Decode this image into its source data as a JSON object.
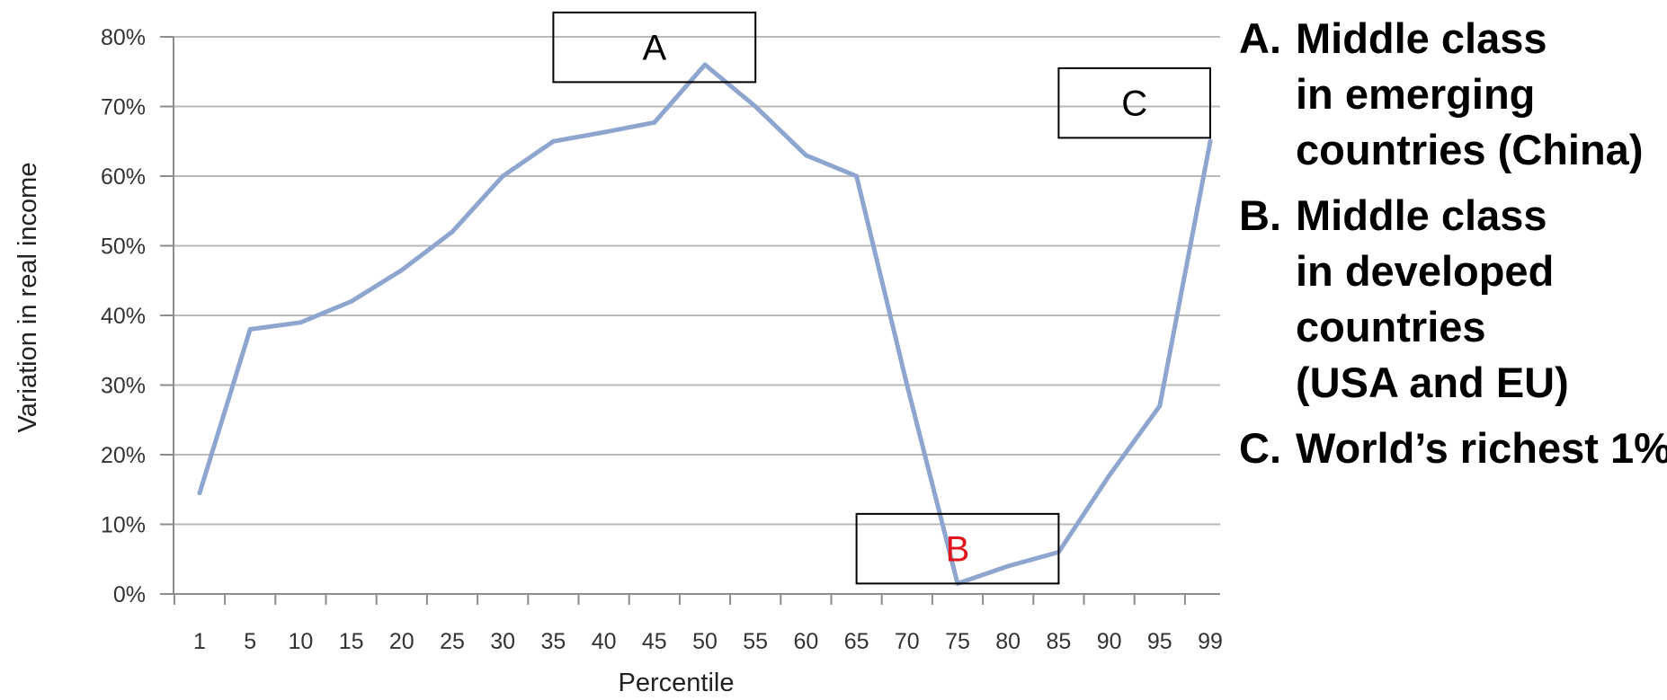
{
  "chart_data": {
    "type": "line",
    "xlabel": "Percentile",
    "ylabel": "Variation in real income",
    "categories": [
      "1",
      "5",
      "10",
      "15",
      "20",
      "25",
      "30",
      "35",
      "40",
      "45",
      "50",
      "55",
      "60",
      "65",
      "70",
      "75",
      "80",
      "85",
      "90",
      "95",
      "99"
    ],
    "series": [
      {
        "values": [
          14.5,
          38,
          39,
          42,
          46.5,
          52,
          60,
          65,
          66.3,
          67.7,
          76,
          70,
          63,
          60,
          30,
          1.5,
          4,
          6,
          17,
          27,
          65
        ]
      }
    ],
    "ylim": [
      0,
      80
    ],
    "yticks": [
      "0%",
      "10%",
      "20%",
      "30%",
      "40%",
      "50%",
      "60%",
      "70%",
      "80%"
    ],
    "grid": "horizontal",
    "line_color": "#8EA5CF",
    "annotations": [
      {
        "label": "A",
        "color": "#000000",
        "x_range": [
          "35",
          "55"
        ],
        "y_range": [
          73.5,
          83.5
        ]
      },
      {
        "label": "B",
        "color": "#E3141B",
        "x_range": [
          "65",
          "85"
        ],
        "y_range": [
          1.5,
          11.5
        ]
      },
      {
        "label": "C",
        "color": "#000000",
        "x_range": [
          "85",
          "99"
        ],
        "y_range": [
          65.5,
          75.5
        ]
      }
    ]
  },
  "legend": [
    {
      "key": "A.",
      "lines": [
        "Middle class",
        "in emerging",
        "countries (China)"
      ]
    },
    {
      "key": "B.",
      "lines": [
        "Middle class",
        "in developed",
        "countries",
        "(USA and EU)"
      ]
    },
    {
      "key": "C.",
      "lines": [
        "World’s richest 1%"
      ]
    }
  ]
}
